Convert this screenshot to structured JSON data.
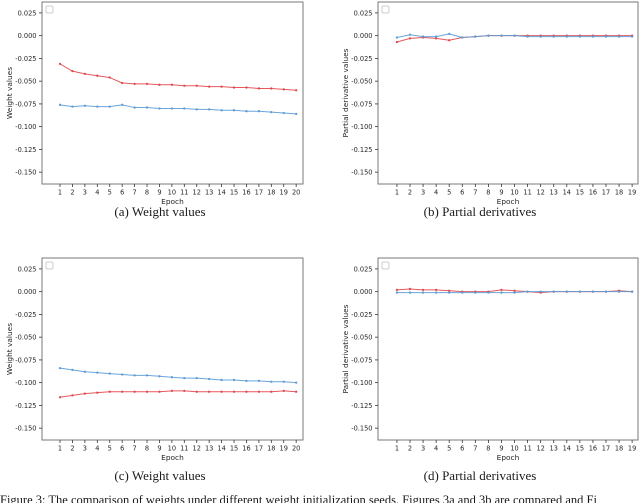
{
  "figure": {
    "caption_clipped": "Figure 3: The comparison of weights under different weight initialization seeds. Figures 3a and 3b are compared and Fi"
  },
  "colors": {
    "red_series": "#e0474c",
    "blue_series": "#5b9bd5",
    "spine": "#7a7a7a",
    "tick": "#333333",
    "legend_border": "#cccccc"
  },
  "chart_data": [
    {
      "id": "a",
      "type": "line",
      "title": "(a) Weight values",
      "xlabel": "Epoch",
      "ylabel": "Weight values",
      "x": [
        1,
        2,
        3,
        4,
        5,
        6,
        7,
        8,
        9,
        10,
        11,
        12,
        13,
        14,
        15,
        16,
        17,
        18,
        19,
        20
      ],
      "xticks": [
        1,
        2,
        3,
        4,
        5,
        6,
        7,
        8,
        9,
        10,
        11,
        12,
        13,
        14,
        15,
        16,
        17,
        18,
        19,
        20
      ],
      "yticks": [
        0.025,
        0.0,
        -0.025,
        -0.05,
        -0.075,
        -0.1,
        -0.125,
        -0.15
      ],
      "xlim": [
        -0.45,
        20.55
      ],
      "ylim": [
        -0.163,
        0.037
      ],
      "grid": false,
      "legend": "empty-box-top-left",
      "series": [
        {
          "name": "red_line",
          "color_key": "red_series",
          "values": [
            -0.031,
            -0.039,
            -0.042,
            -0.044,
            -0.046,
            -0.052,
            -0.053,
            -0.053,
            -0.054,
            -0.054,
            -0.055,
            -0.055,
            -0.056,
            -0.056,
            -0.057,
            -0.057,
            -0.058,
            -0.058,
            -0.059,
            -0.06
          ]
        },
        {
          "name": "blue_line",
          "color_key": "blue_series",
          "values": [
            -0.076,
            -0.078,
            -0.077,
            -0.078,
            -0.078,
            -0.076,
            -0.079,
            -0.079,
            -0.08,
            -0.08,
            -0.08,
            -0.081,
            -0.081,
            -0.082,
            -0.082,
            -0.083,
            -0.083,
            -0.084,
            -0.085,
            -0.086
          ]
        }
      ]
    },
    {
      "id": "b",
      "type": "line",
      "title": "(b) Partial derivatives",
      "xlabel": "Epoch",
      "ylabel": "Partial derivative values",
      "x": [
        1,
        2,
        3,
        4,
        5,
        6,
        7,
        8,
        9,
        10,
        11,
        12,
        13,
        14,
        15,
        16,
        17,
        18,
        19
      ],
      "xticks": [
        1,
        2,
        3,
        4,
        5,
        6,
        7,
        8,
        9,
        10,
        11,
        12,
        13,
        14,
        15,
        16,
        17,
        18,
        19
      ],
      "yticks": [
        0.025,
        0.0,
        -0.025,
        -0.05,
        -0.075,
        -0.1,
        -0.125,
        -0.15
      ],
      "xlim": [
        -0.45,
        19.45
      ],
      "ylim": [
        -0.163,
        0.037
      ],
      "grid": false,
      "legend": "empty-box-top-left",
      "series": [
        {
          "name": "red_line",
          "color_key": "red_series",
          "values": [
            -0.007,
            -0.003,
            -0.002,
            -0.003,
            -0.005,
            -0.002,
            -0.001,
            0.0,
            0.0,
            0.0,
            0.0,
            0.0,
            0.0,
            0.0,
            0.0,
            0.0,
            0.0,
            0.0,
            0.0
          ]
        },
        {
          "name": "blue_line",
          "color_key": "blue_series",
          "values": [
            -0.002,
            0.001,
            -0.001,
            -0.001,
            0.002,
            -0.002,
            -0.001,
            0.0,
            0.0,
            0.0,
            -0.001,
            -0.001,
            -0.001,
            -0.001,
            -0.001,
            -0.001,
            -0.001,
            -0.001,
            -0.001
          ]
        }
      ]
    },
    {
      "id": "c",
      "type": "line",
      "title": "(c) Weight values",
      "xlabel": "Epoch",
      "ylabel": "Weight values",
      "x": [
        1,
        2,
        3,
        4,
        5,
        6,
        7,
        8,
        9,
        10,
        11,
        12,
        13,
        14,
        15,
        16,
        17,
        18,
        19,
        20
      ],
      "xticks": [
        1,
        2,
        3,
        4,
        5,
        6,
        7,
        8,
        9,
        10,
        11,
        12,
        13,
        14,
        15,
        16,
        17,
        18,
        19,
        20
      ],
      "yticks": [
        0.025,
        0.0,
        -0.025,
        -0.05,
        -0.075,
        -0.1,
        -0.125,
        -0.15
      ],
      "xlim": [
        -0.45,
        20.55
      ],
      "ylim": [
        -0.163,
        0.037
      ],
      "grid": false,
      "legend": "empty-box-top-left",
      "series": [
        {
          "name": "blue_line",
          "color_key": "blue_series",
          "values": [
            -0.084,
            -0.086,
            -0.088,
            -0.089,
            -0.09,
            -0.091,
            -0.092,
            -0.092,
            -0.093,
            -0.094,
            -0.095,
            -0.095,
            -0.096,
            -0.097,
            -0.097,
            -0.098,
            -0.098,
            -0.099,
            -0.099,
            -0.1
          ]
        },
        {
          "name": "red_line",
          "color_key": "red_series",
          "values": [
            -0.116,
            -0.114,
            -0.112,
            -0.111,
            -0.11,
            -0.11,
            -0.11,
            -0.11,
            -0.11,
            -0.109,
            -0.109,
            -0.11,
            -0.11,
            -0.11,
            -0.11,
            -0.11,
            -0.11,
            -0.11,
            -0.109,
            -0.11
          ]
        }
      ]
    },
    {
      "id": "d",
      "type": "line",
      "title": "(d) Partial derivatives",
      "xlabel": "Epoch",
      "ylabel": "Partial derivative values",
      "x": [
        1,
        2,
        3,
        4,
        5,
        6,
        7,
        8,
        9,
        10,
        11,
        12,
        13,
        14,
        15,
        16,
        17,
        18,
        19
      ],
      "xticks": [
        1,
        2,
        3,
        4,
        5,
        6,
        7,
        8,
        9,
        10,
        11,
        12,
        13,
        14,
        15,
        16,
        17,
        18,
        19
      ],
      "yticks": [
        0.025,
        0.0,
        -0.025,
        -0.05,
        -0.075,
        -0.1,
        -0.125,
        -0.15
      ],
      "xlim": [
        -0.45,
        19.45
      ],
      "ylim": [
        -0.163,
        0.037
      ],
      "grid": false,
      "legend": "empty-box-top-left",
      "series": [
        {
          "name": "red_line",
          "color_key": "red_series",
          "values": [
            0.002,
            0.003,
            0.002,
            0.002,
            0.001,
            0.0,
            0.0,
            0.0,
            0.002,
            0.001,
            0.0,
            -0.001,
            0.0,
            0.0,
            0.0,
            0.0,
            0.0,
            0.001,
            0.0
          ]
        },
        {
          "name": "blue_line",
          "color_key": "blue_series",
          "values": [
            -0.001,
            -0.001,
            -0.001,
            -0.001,
            -0.001,
            -0.001,
            -0.001,
            -0.001,
            -0.001,
            -0.001,
            0.0,
            0.0,
            0.0,
            0.0,
            0.0,
            0.0,
            0.0,
            0.0,
            0.0
          ]
        }
      ]
    }
  ]
}
